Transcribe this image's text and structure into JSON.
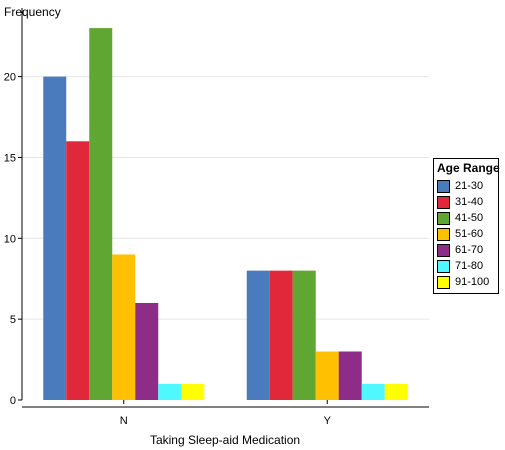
{
  "chart_data": {
    "type": "bar",
    "categories": [
      "N",
      "Y"
    ],
    "series": [
      {
        "name": "21-30",
        "color": "#4a7bbd",
        "values": [
          20,
          8
        ]
      },
      {
        "name": "31-40",
        "color": "#e1283a",
        "values": [
          16,
          8
        ]
      },
      {
        "name": "41-50",
        "color": "#5fa732",
        "values": [
          23,
          8
        ]
      },
      {
        "name": "51-60",
        "color": "#fec000",
        "values": [
          9,
          3
        ]
      },
      {
        "name": "61-70",
        "color": "#8e2d87",
        "values": [
          6,
          3
        ]
      },
      {
        "name": "71-80",
        "color": "#4ff8ff",
        "values": [
          1,
          1
        ]
      },
      {
        "name": "91-100",
        "color": "#ffff00",
        "values": [
          1,
          1
        ]
      }
    ],
    "xlabel": "Taking Sleep-aid Medication",
    "ylabel": "Frequency",
    "ylim": [
      0,
      23.5
    ],
    "yticks": [
      0,
      5,
      10,
      15,
      20
    ],
    "grid": true,
    "legend": {
      "title": "Age Range",
      "position": "right"
    }
  }
}
